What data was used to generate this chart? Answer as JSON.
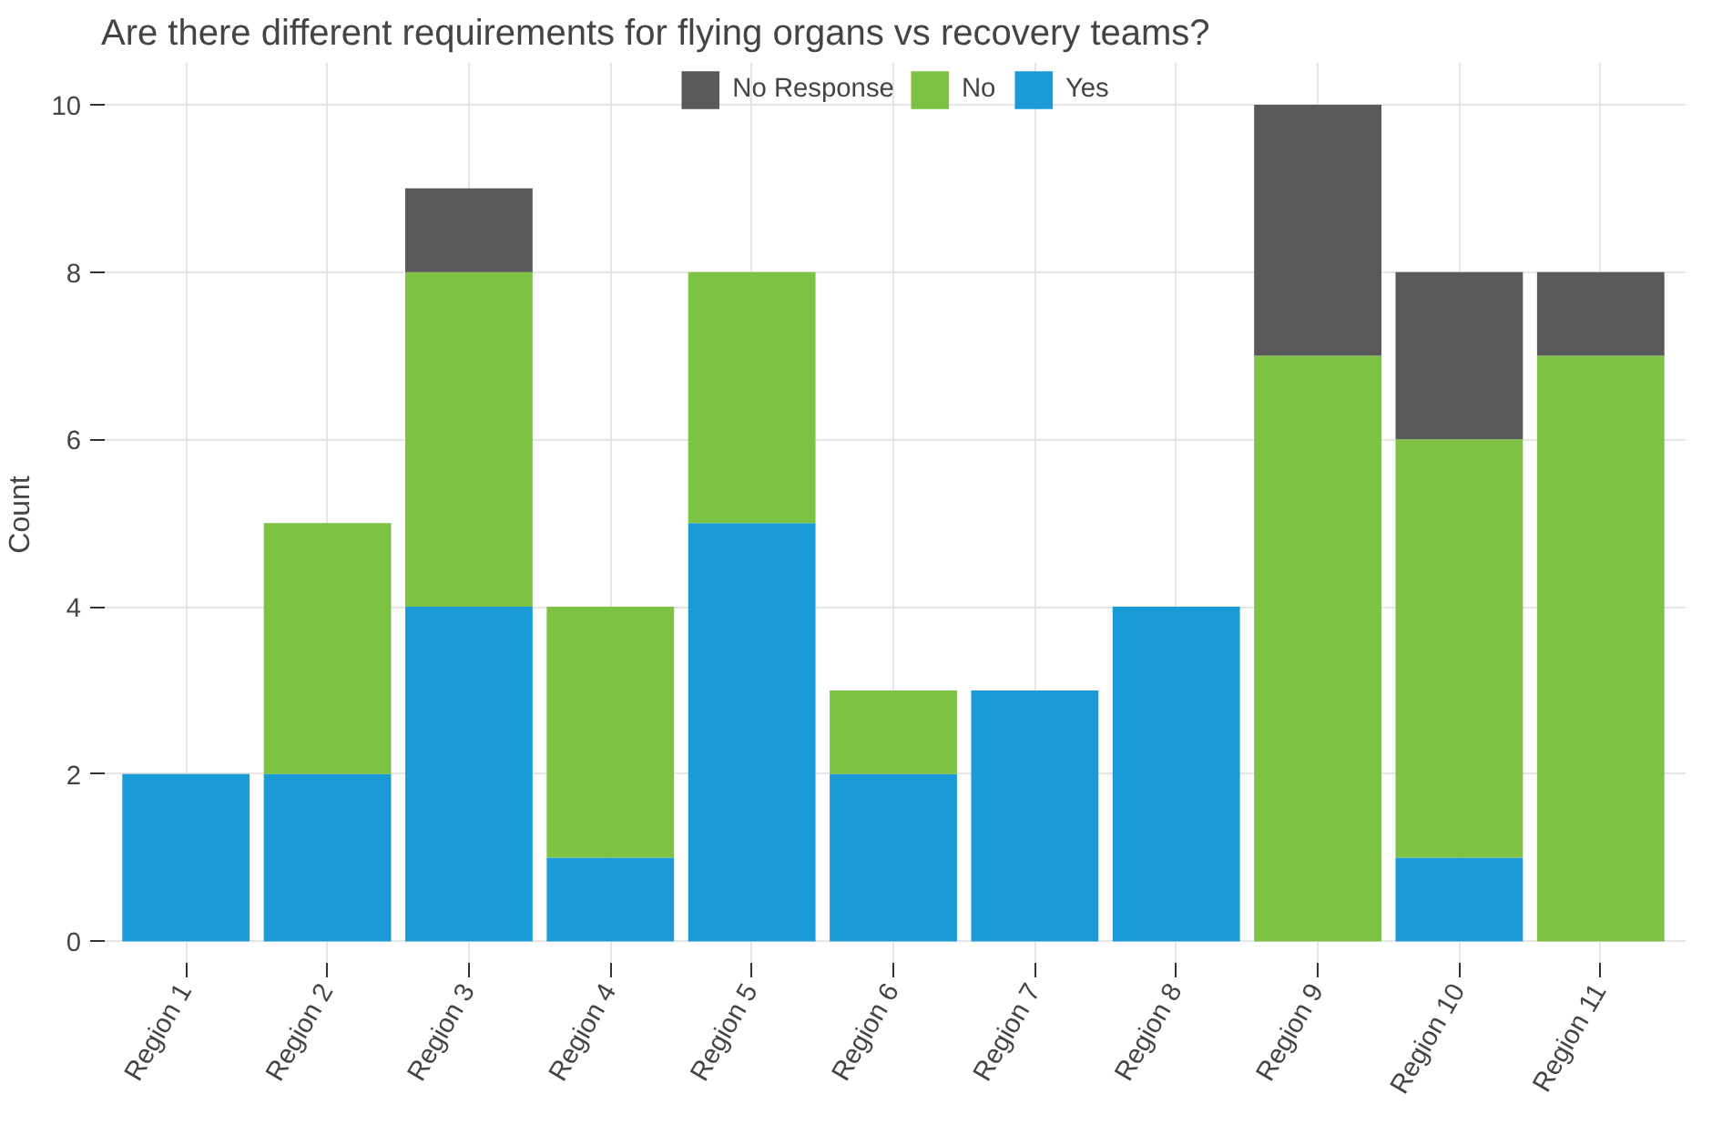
{
  "chart_data": {
    "type": "bar",
    "title": "Are there different requirements for flying organs vs recovery teams?",
    "ylabel": "Count",
    "categories": [
      "Region 1",
      "Region 2",
      "Region 3",
      "Region 4",
      "Region 5",
      "Region 6",
      "Region 7",
      "Region 8",
      "Region 9",
      "Region 10",
      "Region 11"
    ],
    "series": [
      {
        "name": "Yes",
        "color": "#1a9bd7",
        "values": [
          2,
          2,
          4,
          1,
          5,
          2,
          3,
          4,
          0,
          1,
          0
        ]
      },
      {
        "name": "No",
        "color": "#7dc242",
        "values": [
          0,
          3,
          4,
          3,
          3,
          1,
          0,
          0,
          7,
          5,
          7
        ]
      },
      {
        "name": "No Response",
        "color": "#595959",
        "values": [
          0,
          0,
          1,
          0,
          0,
          0,
          0,
          0,
          3,
          2,
          1
        ]
      }
    ],
    "stacked": true,
    "ylim": [
      -0.3,
      10.5
    ],
    "yticks": [
      0,
      2,
      4,
      6,
      8,
      10
    ],
    "grid": true,
    "legend": "top"
  }
}
